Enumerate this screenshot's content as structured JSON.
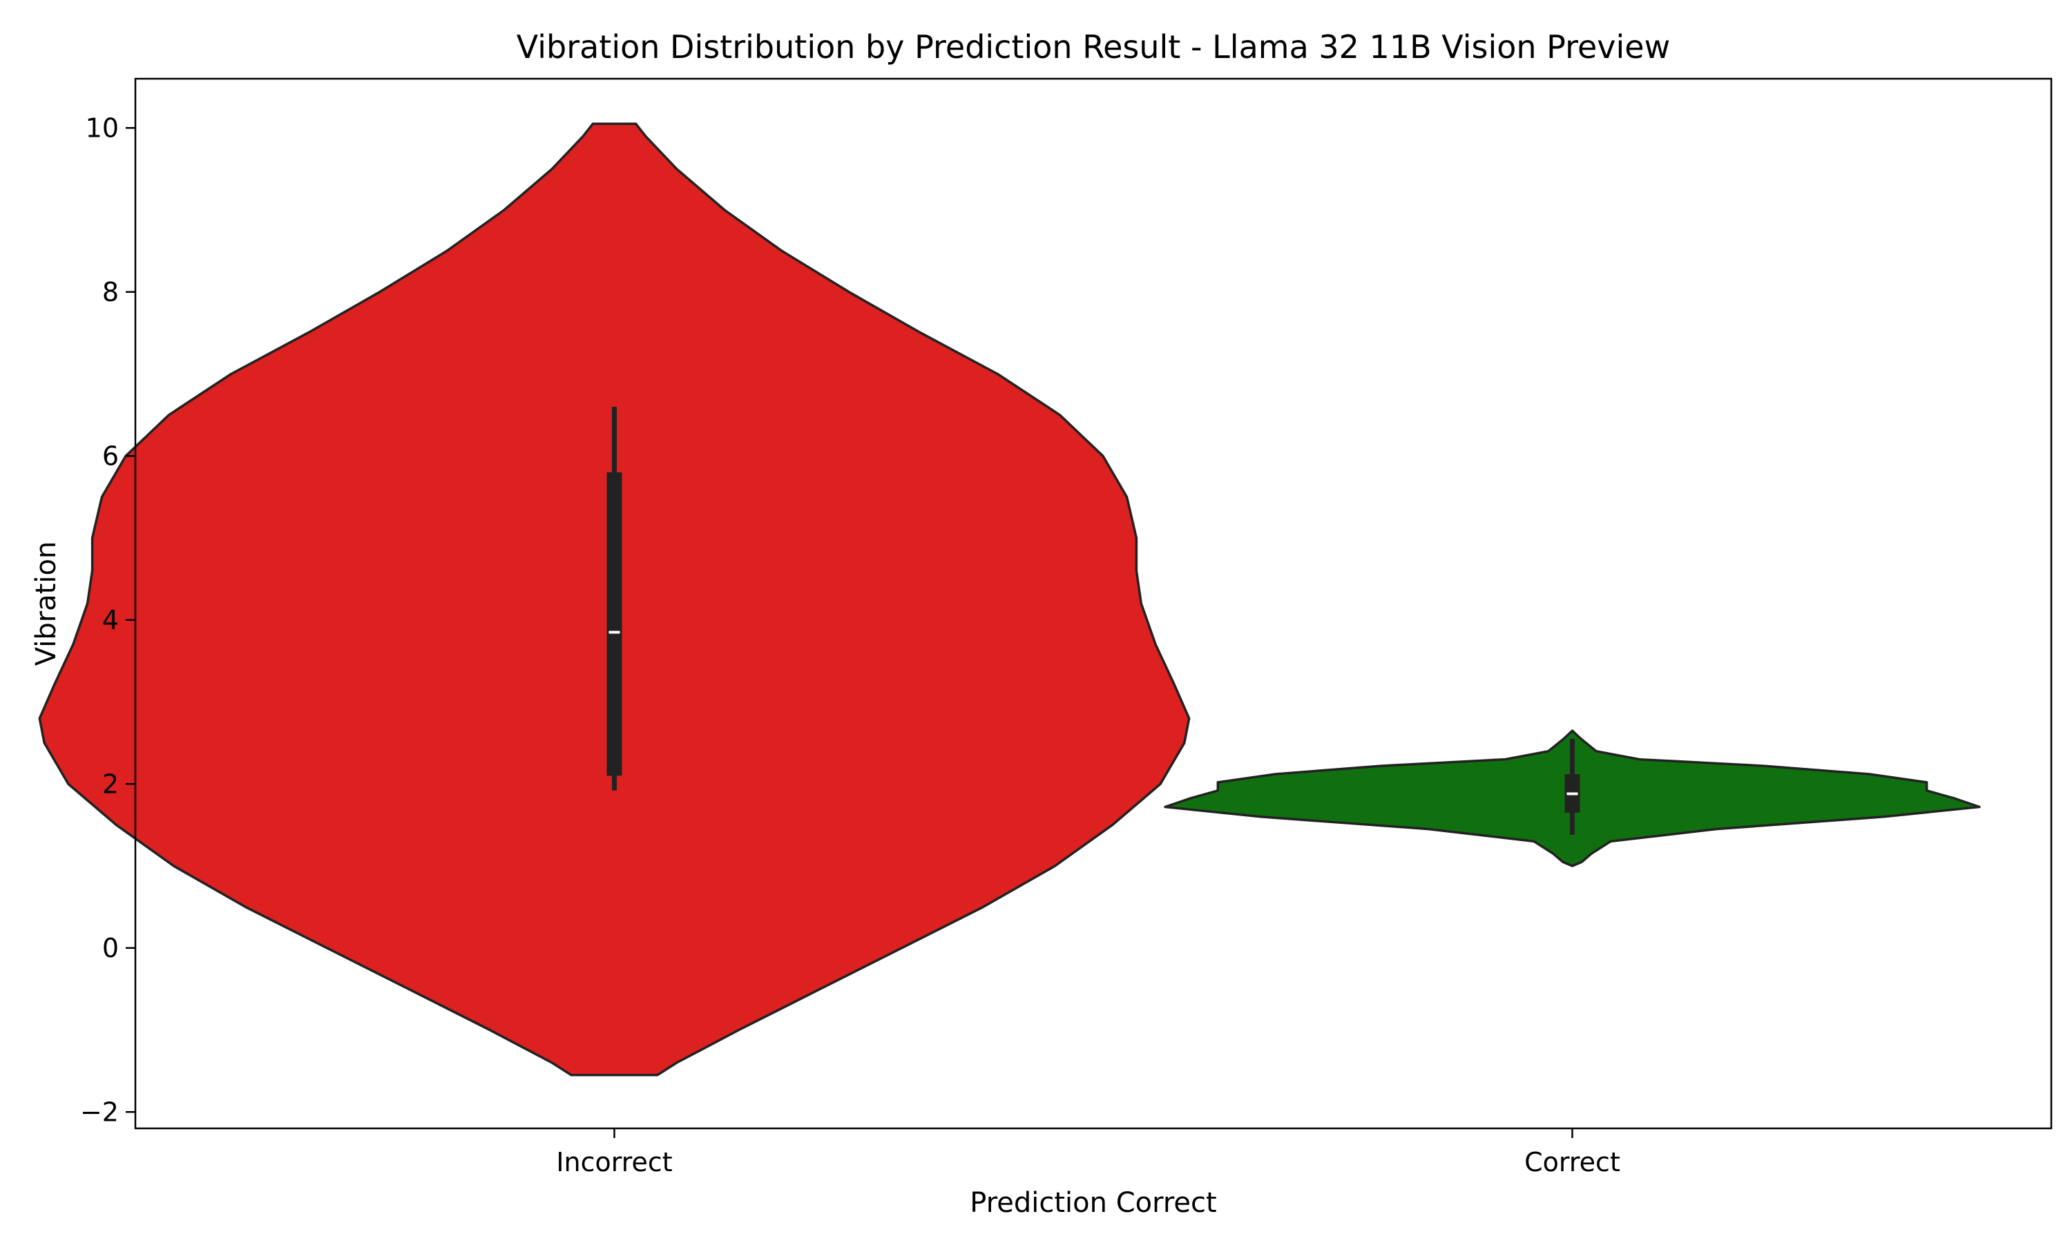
{
  "chart_data": {
    "type": "violin",
    "title": "Vibration Distribution by Prediction Result - Llama 32 11B Vision Preview",
    "xlabel": "Prediction Correct",
    "ylabel": "Vibration",
    "ylim": [
      -2.2,
      10.6
    ],
    "yticks": [
      -2,
      0,
      2,
      4,
      6,
      8,
      10
    ],
    "ytick_labels": [
      "−2",
      "0",
      "2",
      "4",
      "6",
      "8",
      "10"
    ],
    "categories": [
      "Incorrect",
      "Correct"
    ],
    "grid": false,
    "legend": "none",
    "series": [
      {
        "category": "Incorrect",
        "color": "#dd2020",
        "profile": [
          [
            -1.55,
            0.09
          ],
          [
            -1.4,
            0.13
          ],
          [
            -1.0,
            0.26
          ],
          [
            -0.5,
            0.43
          ],
          [
            0.0,
            0.6
          ],
          [
            0.5,
            0.77
          ],
          [
            1.0,
            0.92
          ],
          [
            1.5,
            1.04
          ],
          [
            2.0,
            1.14
          ],
          [
            2.5,
            1.19
          ],
          [
            2.8,
            1.2
          ],
          [
            3.2,
            1.17
          ],
          [
            3.7,
            1.13
          ],
          [
            4.2,
            1.1
          ],
          [
            4.6,
            1.09
          ],
          [
            5.0,
            1.09
          ],
          [
            5.5,
            1.07
          ],
          [
            6.0,
            1.02
          ],
          [
            6.5,
            0.93
          ],
          [
            7.0,
            0.8
          ],
          [
            7.5,
            0.64
          ],
          [
            8.0,
            0.49
          ],
          [
            8.5,
            0.35
          ],
          [
            9.0,
            0.23
          ],
          [
            9.5,
            0.13
          ],
          [
            9.9,
            0.065
          ],
          [
            10.05,
            0.045
          ]
        ],
        "box": {
          "q1": 2.1,
          "median": 3.85,
          "q3": 5.8,
          "whisker_low": 1.92,
          "whisker_high": 6.6
        }
      },
      {
        "category": "Correct",
        "color": "#107010",
        "profile": [
          [
            1.0,
            0.0
          ],
          [
            1.05,
            0.02
          ],
          [
            1.15,
            0.04
          ],
          [
            1.3,
            0.08
          ],
          [
            1.45,
            0.3
          ],
          [
            1.6,
            0.65
          ],
          [
            1.72,
            0.85
          ],
          [
            1.82,
            0.8
          ],
          [
            1.92,
            0.74
          ],
          [
            2.02,
            0.74
          ],
          [
            2.12,
            0.62
          ],
          [
            2.22,
            0.4
          ],
          [
            2.3,
            0.14
          ],
          [
            2.4,
            0.05
          ],
          [
            2.55,
            0.018
          ],
          [
            2.65,
            0.0
          ]
        ],
        "box": {
          "q1": 1.65,
          "median": 1.88,
          "q3": 2.12,
          "whisker_low": 1.38,
          "whisker_high": 2.55
        }
      }
    ]
  }
}
